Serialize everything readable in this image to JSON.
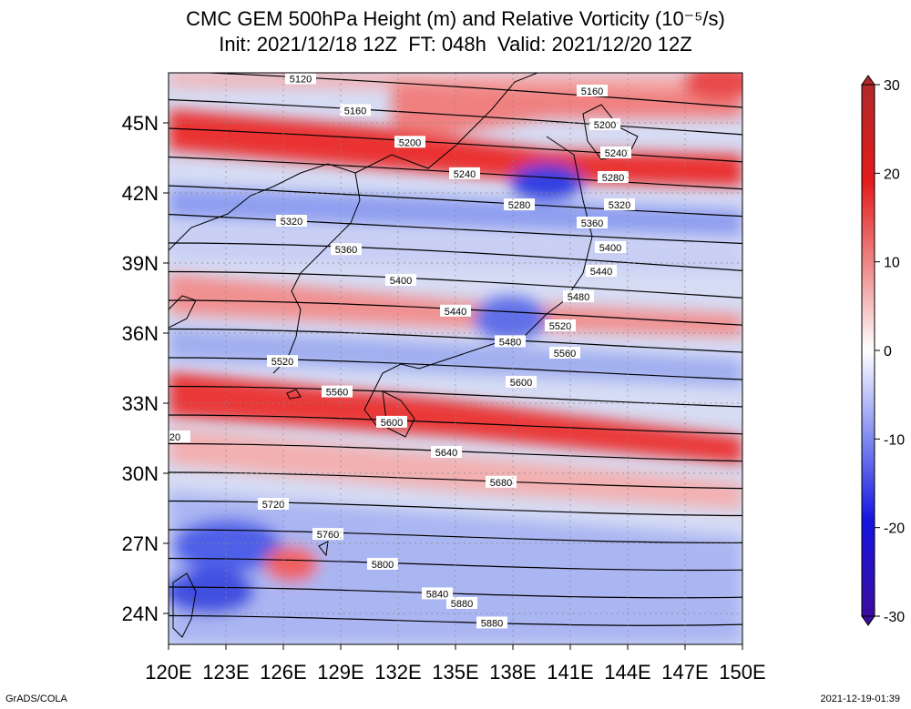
{
  "title_line1": "CMC GEM 500hPa Height (m) and Relative Vorticity (10⁻⁵/s)",
  "title_line2": "Init: 2021/12/18 12Z  FT: 048h  Valid: 2021/12/20 12Z",
  "lon_labels": [
    "120E",
    "123E",
    "126E",
    "129E",
    "132E",
    "135E",
    "138E",
    "141E",
    "144E",
    "147E",
    "150E"
  ],
  "lat_labels": [
    "45N",
    "42N",
    "39N",
    "36N",
    "33N",
    "30N",
    "27N",
    "24N"
  ],
  "colorbar_labels": [
    "30",
    "20",
    "10",
    "0",
    "-10",
    "-20",
    "-30"
  ],
  "colors": {
    "positive": "#e0141e",
    "negative": "#2020d8",
    "neutral": "#ffffff"
  },
  "contours": [
    {
      "label": "5120"
    },
    {
      "label": "5160"
    },
    {
      "label": "5200"
    },
    {
      "label": "5240"
    },
    {
      "label": "5280"
    },
    {
      "label": "5320"
    },
    {
      "label": "5360"
    },
    {
      "label": "5400"
    },
    {
      "label": "5440"
    },
    {
      "label": "5480"
    },
    {
      "label": "5520"
    },
    {
      "label": "5560"
    },
    {
      "label": "5600"
    },
    {
      "label": "5640"
    },
    {
      "label": "5680"
    },
    {
      "label": "5720"
    },
    {
      "label": "5760"
    },
    {
      "label": "5800"
    },
    {
      "label": "5840"
    },
    {
      "label": "5880"
    }
  ],
  "extra_labels": [
    "5160",
    "5200",
    "5240",
    "5280",
    "5320",
    "5360",
    "5400",
    "5440",
    "5480",
    "5520",
    "5560",
    "5600",
    "5880",
    "20"
  ],
  "credit": "GrADS/COLA",
  "timestamp": "2021-12-19-01:39"
}
